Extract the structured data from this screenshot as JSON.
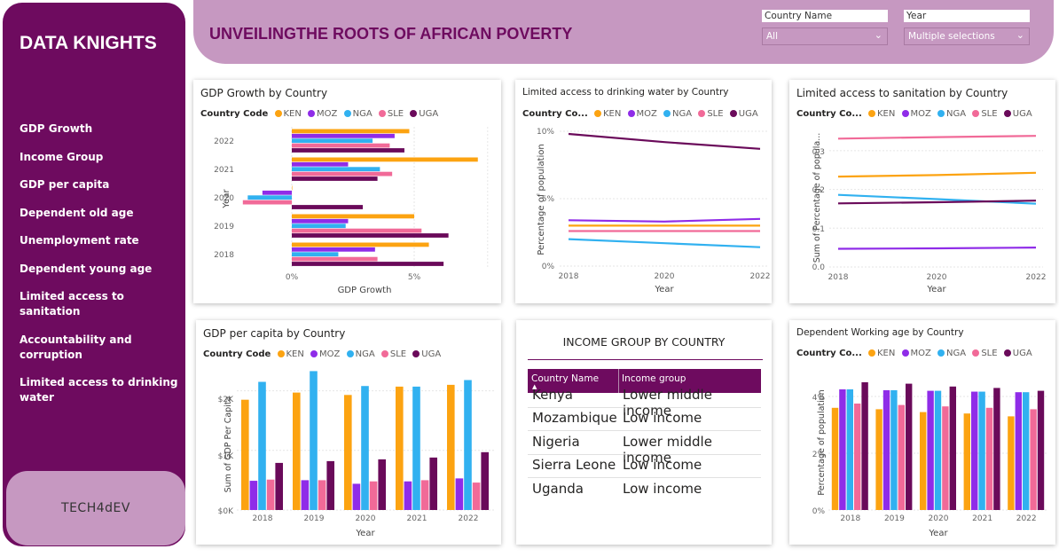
{
  "sidebar": {
    "brand": "DATA KNIGHTS",
    "nav": [
      "GDP Growth",
      "Income Group",
      "GDP per capita",
      "Dependent old age",
      "Unemployment rate",
      "Dependent young age",
      "Limited access to sanitation",
      "Accountability and corruption",
      "Limited access to drinking water"
    ],
    "logo": "TECH4dEV"
  },
  "header": {
    "title": "UNVEILINGTHE ROOTS OF AFRICAN POVERTY",
    "slicers": [
      {
        "label": "Country Name",
        "value": "All"
      },
      {
        "label": "Year",
        "value": "Multiple selections"
      }
    ]
  },
  "legend": {
    "prefix": "Country Code",
    "prefix_short": "Country Co...",
    "codes": [
      "KEN",
      "MOZ",
      "NGA",
      "SLE",
      "UGA"
    ]
  },
  "colors": {
    "KEN": "#fca311",
    "MOZ": "#8f2ce8",
    "NGA": "#31b1f0",
    "SLE": "#f16a98",
    "UGA": "#6a0a5a",
    "accent": "#6e0b5f",
    "header": "#c698c1"
  },
  "charts": {
    "gdp_growth": {
      "title": "GDP Growth by Country",
      "xlabel": "GDP Growth",
      "ylabel": "Year",
      "xticks": [
        "0%",
        "5%"
      ]
    },
    "water": {
      "title": "Limited access to drinking water by Country",
      "ylabel": "Percentage of population",
      "xlabel": "Year",
      "yticks": [
        "0%",
        "5%",
        "10%"
      ],
      "xticks": [
        "2018",
        "2020",
        "2022"
      ]
    },
    "sanitation": {
      "title": "Limited access to sanitation by Country",
      "ylabel": "Sum of Percentage of popula...",
      "xlabel": "Year",
      "yticks": [
        "0.0",
        "0.1",
        "0.2",
        "0.3"
      ],
      "xticks": [
        "2018",
        "2020",
        "2022"
      ]
    },
    "gdp_capita": {
      "title": "GDP per capita by Country",
      "ylabel": "Sum of GDP Per Capita",
      "xlabel": "Year",
      "yticks": [
        "$0K",
        "$1K",
        "$2K"
      ],
      "xticks": [
        "2018",
        "2019",
        "2020",
        "2021",
        "2022"
      ]
    },
    "working_age": {
      "title": "Dependent Working age by Country",
      "ylabel": "Percentage of population",
      "xlabel": "Year",
      "yticks": [
        "0%",
        "2%",
        "4%"
      ],
      "xticks": [
        "2018",
        "2019",
        "2020",
        "2021",
        "2022"
      ]
    }
  },
  "income_table": {
    "title": "INCOME GROUP BY COUNTRY",
    "headers": [
      "Country Name",
      "Income group"
    ],
    "rows": [
      [
        "Kenya",
        "Lower middle income"
      ],
      [
        "Mozambique",
        "Low income"
      ],
      [
        "Nigeria",
        "Lower middle income"
      ],
      [
        "Sierra Leone",
        "Low income"
      ],
      [
        "Uganda",
        "Low income"
      ]
    ]
  },
  "chart_data": [
    {
      "type": "bar",
      "orientation": "horizontal",
      "title": "GDP Growth by Country",
      "xlabel": "GDP Growth",
      "ylabel": "Year",
      "categories": [
        "2022",
        "2021",
        "2020",
        "2019",
        "2018"
      ],
      "series": [
        {
          "name": "KEN",
          "values": [
            4.8,
            7.6,
            0.0,
            5.0,
            5.6
          ]
        },
        {
          "name": "MOZ",
          "values": [
            4.2,
            2.3,
            -1.2,
            2.3,
            3.4
          ]
        },
        {
          "name": "NGA",
          "values": [
            3.3,
            3.6,
            -1.8,
            2.2,
            1.9
          ]
        },
        {
          "name": "SLE",
          "values": [
            4.0,
            4.1,
            -2.0,
            5.3,
            3.5
          ]
        },
        {
          "name": "UGA",
          "values": [
            4.6,
            3.5,
            2.9,
            6.4,
            6.2
          ]
        }
      ],
      "xlim": [
        -2,
        8
      ]
    },
    {
      "type": "line",
      "title": "Limited access to drinking water by Country",
      "xlabel": "Year",
      "ylabel": "Percentage of population",
      "x": [
        2018,
        2020,
        2022
      ],
      "series": [
        {
          "name": "KEN",
          "values": [
            3.0,
            3.0,
            3.0
          ]
        },
        {
          "name": "MOZ",
          "values": [
            3.4,
            3.3,
            3.5
          ]
        },
        {
          "name": "NGA",
          "values": [
            2.0,
            1.7,
            1.4
          ]
        },
        {
          "name": "SLE",
          "values": [
            2.6,
            2.6,
            2.6
          ]
        },
        {
          "name": "UGA",
          "values": [
            9.8,
            9.2,
            8.7
          ]
        }
      ],
      "ylim": [
        0,
        10
      ]
    },
    {
      "type": "line",
      "title": "Limited access to sanitation by Country",
      "xlabel": "Year",
      "ylabel": "Sum of Percentage of popula...",
      "x": [
        2018,
        2020,
        2022
      ],
      "series": [
        {
          "name": "KEN",
          "values": [
            0.233,
            0.237,
            0.243
          ]
        },
        {
          "name": "MOZ",
          "values": [
            0.047,
            0.048,
            0.05
          ]
        },
        {
          "name": "NGA",
          "values": [
            0.186,
            0.175,
            0.163
          ]
        },
        {
          "name": "SLE",
          "values": [
            0.331,
            0.335,
            0.338
          ]
        },
        {
          "name": "UGA",
          "values": [
            0.164,
            0.167,
            0.171
          ]
        }
      ],
      "ylim": [
        0,
        0.35
      ]
    },
    {
      "type": "bar",
      "title": "GDP per capita by Country",
      "xlabel": "Year",
      "ylabel": "Sum of GDP Per Capita",
      "categories": [
        "2018",
        "2019",
        "2020",
        "2021",
        "2022"
      ],
      "series": [
        {
          "name": "KEN",
          "values": [
            1850,
            1970,
            1930,
            2070,
            2100
          ]
        },
        {
          "name": "MOZ",
          "values": [
            490,
            500,
            440,
            480,
            530
          ]
        },
        {
          "name": "NGA",
          "values": [
            2150,
            2330,
            2080,
            2070,
            2180
          ]
        },
        {
          "name": "SLE",
          "values": [
            510,
            500,
            480,
            500,
            460
          ]
        },
        {
          "name": "UGA",
          "values": [
            790,
            820,
            850,
            880,
            970
          ]
        }
      ],
      "ylim": [
        0,
        2500
      ]
    },
    {
      "type": "bar",
      "title": "Dependent Working age by Country",
      "xlabel": "Year",
      "ylabel": "Percentage of population",
      "categories": [
        "2018",
        "2019",
        "2020",
        "2021",
        "2022"
      ],
      "series": [
        {
          "name": "KEN",
          "values": [
            3.6,
            3.55,
            3.45,
            3.4,
            3.3
          ]
        },
        {
          "name": "MOZ",
          "values": [
            4.25,
            4.22,
            4.2,
            4.17,
            4.15
          ]
        },
        {
          "name": "NGA",
          "values": [
            4.25,
            4.22,
            4.2,
            4.17,
            4.15
          ]
        },
        {
          "name": "SLE",
          "values": [
            3.75,
            3.7,
            3.65,
            3.6,
            3.55
          ]
        },
        {
          "name": "UGA",
          "values": [
            4.5,
            4.45,
            4.35,
            4.3,
            4.2
          ]
        }
      ],
      "ylim": [
        0,
        5
      ]
    }
  ]
}
